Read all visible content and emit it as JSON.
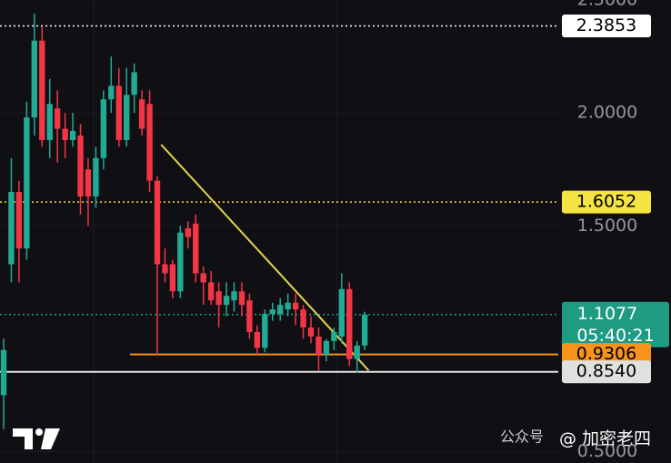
{
  "chart_data": {
    "type": "candlestick",
    "open": [
      0.75,
      1.33,
      1.65,
      1.4,
      1.98,
      2.32,
      1.88,
      2.02,
      1.93,
      1.88,
      1.9,
      1.75,
      1.63,
      1.8,
      2.06,
      2.12,
      1.88,
      2.08,
      2.06,
      2.04,
      1.7,
      1.33,
      1.33,
      1.21,
      1.49,
      1.51,
      1.29,
      1.25,
      1.21,
      1.15,
      1.17,
      1.21,
      1.17,
      1.03,
      0.96,
      1.11,
      1.11,
      1.13,
      1.16,
      1.13,
      1.05,
      1.01,
      0.93,
      0.99,
      1.01,
      1.22,
      0.91,
      0.97
    ],
    "high": [
      1.0,
      1.8,
      1.7,
      2.05,
      2.44,
      2.38,
      2.15,
      2.1,
      2.0,
      2.0,
      1.95,
      1.8,
      1.85,
      2.1,
      2.25,
      2.2,
      2.2,
      2.22,
      2.1,
      2.1,
      1.72,
      1.4,
      1.35,
      1.5,
      1.52,
      1.55,
      1.32,
      1.3,
      1.25,
      1.25,
      1.25,
      1.25,
      1.2,
      1.06,
      1.13,
      1.16,
      1.18,
      1.2,
      1.2,
      1.15,
      1.1,
      1.05,
      1.0,
      1.05,
      1.29,
      1.25,
      0.99,
      1.12
    ],
    "low": [
      0.6,
      1.25,
      1.25,
      1.35,
      1.9,
      1.85,
      1.8,
      1.78,
      1.8,
      1.85,
      1.55,
      1.5,
      1.58,
      1.75,
      2.0,
      1.85,
      1.85,
      2.0,
      1.9,
      1.65,
      0.93,
      1.25,
      1.18,
      1.18,
      1.4,
      1.25,
      1.15,
      1.15,
      1.05,
      1.1,
      1.12,
      1.1,
      1.0,
      0.93,
      0.94,
      1.08,
      1.08,
      1.1,
      1.06,
      1.0,
      0.98,
      0.86,
      0.9,
      0.95,
      0.98,
      0.88,
      0.85,
      0.95
    ],
    "close": [
      0.95,
      1.65,
      1.4,
      1.98,
      2.32,
      1.88,
      2.04,
      1.93,
      1.88,
      1.92,
      1.63,
      1.63,
      1.8,
      2.06,
      2.12,
      1.88,
      2.08,
      2.18,
      1.93,
      1.7,
      1.33,
      1.29,
      1.21,
      1.47,
      1.45,
      1.29,
      1.25,
      1.17,
      1.15,
      1.19,
      1.21,
      1.15,
      1.03,
      0.96,
      1.11,
      1.13,
      1.15,
      1.16,
      1.13,
      1.05,
      1.01,
      0.93,
      0.99,
      1.03,
      1.22,
      0.91,
      0.97,
      1.1077
    ],
    "up_color": "#22ab94",
    "down_color": "#f23645",
    "ylim": [
      0.45,
      2.5
    ],
    "yticks": [
      {
        "value": 2.5,
        "label": "2.5000"
      },
      {
        "value": 2,
        "label": "2.0000"
      },
      {
        "value": 1.5,
        "label": "1.5000"
      },
      {
        "value": 0.5,
        "label": "0.5000"
      }
    ],
    "price_lines": [
      {
        "value": 2.3853,
        "label": "2.3853",
        "color": "#ffffff",
        "text_color": "#000000",
        "style": "dotted"
      },
      {
        "value": 1.6052,
        "label": "1.6052",
        "color": "#f5e342",
        "text_color": "#000000",
        "style": "dotted"
      },
      {
        "value": 1.1077,
        "label": "1.1077",
        "countdown": "05:40:21",
        "color": "#1f9b82",
        "text_color": "#ffffff",
        "style": "dotted"
      },
      {
        "value": 0.9306,
        "label": "0.9306",
        "color": "#f7931a",
        "text_color": "#000000",
        "style": "solid"
      },
      {
        "value": 0.854,
        "label": "0.8540",
        "color": "#e0e0e0",
        "text_color": "#000000",
        "style": "solid"
      }
    ],
    "trendline": {
      "x": [
        20.5,
        47.5
      ],
      "y": [
        1.86,
        0.86
      ],
      "color": "#e3d54a"
    },
    "watermark": [
      "公众号",
      "@ 加密老四"
    ]
  }
}
